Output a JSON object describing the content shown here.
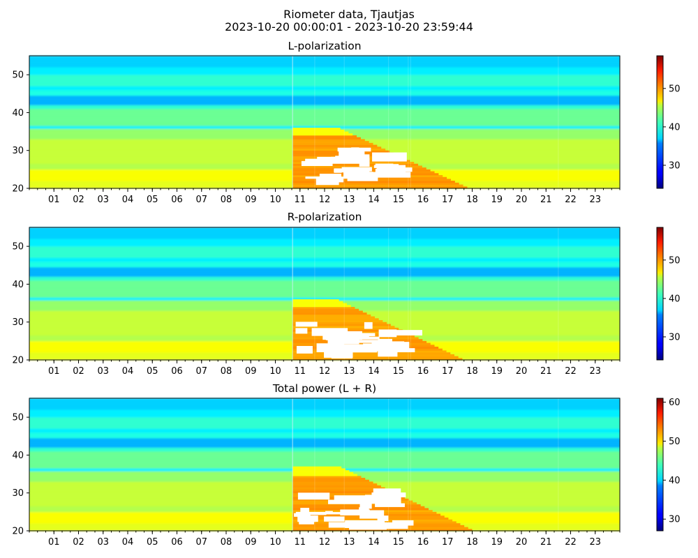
{
  "figure": {
    "title_line1": "Riometer data, Tjautjas",
    "title_line2": "2023-10-20 00:00:01 - 2023-10-20 23:59:44"
  },
  "chart_data": [
    {
      "type": "heatmap",
      "title": "L-polarization",
      "xlabel": "",
      "ylabel": "",
      "x_range_hours": [
        0,
        24
      ],
      "ylim": [
        20,
        55
      ],
      "y_ticks": [
        20,
        30,
        40,
        50
      ],
      "x_tick_labels": [
        "01",
        "02",
        "03",
        "04",
        "05",
        "06",
        "07",
        "08",
        "09",
        "10",
        "11",
        "12",
        "13",
        "14",
        "15",
        "16",
        "17",
        "18",
        "19",
        "20",
        "21",
        "22",
        "23"
      ],
      "colorbar": {
        "colormap": "jet",
        "range": [
          24,
          58.5
        ],
        "ticks": [
          30,
          40,
          50
        ]
      },
      "features": {
        "onset_hour": 10.7,
        "saturated_region": {
          "x_hours": [
            10.7,
            17.8
          ],
          "y": [
            20,
            36
          ]
        },
        "blank_bands": [
          {
            "x_hours": [
              10.7,
              15.3
            ],
            "y": [
              20,
              30
            ]
          }
        ]
      }
    },
    {
      "type": "heatmap",
      "title": "R-polarization",
      "xlabel": "",
      "ylabel": "",
      "x_range_hours": [
        0,
        24
      ],
      "ylim": [
        20,
        55
      ],
      "y_ticks": [
        20,
        30,
        40,
        50
      ],
      "x_tick_labels": [
        "01",
        "02",
        "03",
        "04",
        "05",
        "06",
        "07",
        "08",
        "09",
        "10",
        "11",
        "12",
        "13",
        "14",
        "15",
        "16",
        "17",
        "18",
        "19",
        "20",
        "21",
        "22",
        "23"
      ],
      "colorbar": {
        "colormap": "jet",
        "range": [
          24,
          58.5
        ],
        "ticks": [
          30,
          40,
          50
        ]
      },
      "features": {
        "onset_hour": 10.7,
        "saturated_region": {
          "x_hours": [
            10.7,
            17.6
          ],
          "y": [
            20,
            36
          ]
        },
        "blank_bands": [
          {
            "x_hours": [
              10.7,
              15.3
            ],
            "y": [
              20,
              29
            ]
          }
        ]
      }
    },
    {
      "type": "heatmap",
      "title": "Total power (L + R)",
      "xlabel": "",
      "ylabel": "",
      "x_range_hours": [
        0,
        24
      ],
      "ylim": [
        20,
        55
      ],
      "y_ticks": [
        20,
        30,
        40,
        50
      ],
      "x_tick_labels": [
        "01",
        "02",
        "03",
        "04",
        "05",
        "06",
        "07",
        "08",
        "09",
        "10",
        "11",
        "12",
        "13",
        "14",
        "15",
        "16",
        "17",
        "18",
        "19",
        "20",
        "21",
        "22",
        "23"
      ],
      "colorbar": {
        "colormap": "jet",
        "range": [
          27,
          61
        ],
        "ticks": [
          30,
          40,
          50,
          60
        ]
      },
      "features": {
        "onset_hour": 10.7,
        "saturated_region": {
          "x_hours": [
            10.7,
            18.0
          ],
          "y": [
            20,
            37
          ]
        },
        "blank_bands": [
          {
            "x_hours": [
              10.7,
              15.5
            ],
            "y": [
              20,
              29
            ]
          }
        ]
      }
    }
  ]
}
